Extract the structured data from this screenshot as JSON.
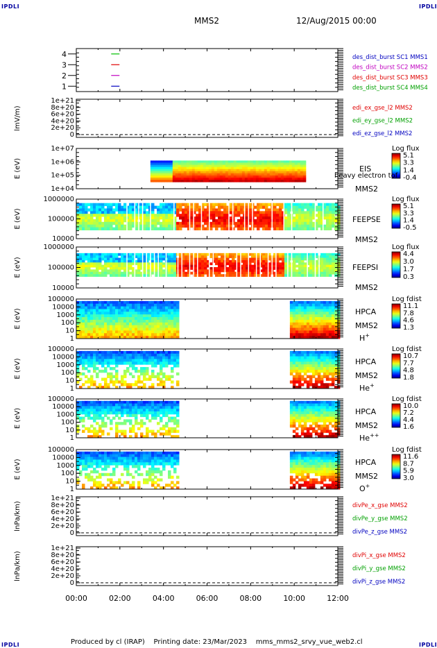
{
  "header": {
    "corner_label": "IPDLI",
    "spacecraft": "MMS2",
    "datetime": "12/Aug/2015 00:00"
  },
  "footer": {
    "produced_by": "Produced by  cl (IRAP)",
    "printing_date": "Printing date: 23/Mar/2023",
    "script_name": "mms_mms2_srvy_vue_web2.cl"
  },
  "chart_data": {
    "type": "heatmap",
    "x_axis": {
      "range": [
        "00:00",
        "12:00"
      ],
      "ticks": [
        "00:00",
        "02:00",
        "04:00",
        "06:00",
        "08:00",
        "10:00",
        "12:00"
      ]
    },
    "panels": [
      {
        "id": "dist",
        "kind": "line",
        "ylim": [
          0.5,
          4.5
        ],
        "yticks": [
          "4",
          "3",
          "2",
          "1"
        ],
        "markers": [
          {
            "y": 4,
            "t": 1.6,
            "color": "#00c000"
          },
          {
            "y": 3,
            "t": 1.6,
            "color": "#e00000"
          },
          {
            "y": 2,
            "t": 1.6,
            "color": "#c000c0"
          },
          {
            "y": 1,
            "t": 1.6,
            "color": "#0000c0"
          }
        ],
        "legend": [
          {
            "text": "des_dist_burst SC1 MMS1",
            "color": "#0000c0"
          },
          {
            "text": "des_dist_burst SC2 MMS2",
            "color": "#c000c0"
          },
          {
            "text": "des_dist_burst SC3 MMS3",
            "color": "#e00000"
          },
          {
            "text": "des_dist_burst SC4 MMS4",
            "color": "#00a000"
          }
        ]
      },
      {
        "id": "edi",
        "kind": "line",
        "ylabel": "lmV/m)",
        "yticks": [
          "1e+21",
          "8e+20",
          "6e+20",
          "4e+20",
          "2e+20",
          "0"
        ],
        "legend": [
          {
            "text": "edi_ex_gse_l2 MMS2",
            "color": "#e00000"
          },
          {
            "text": "edi_ey_gse_l2 MMS2",
            "color": "#00a000"
          },
          {
            "text": "edi_ez_gse_l2 MMS2",
            "color": "#0000c0"
          }
        ]
      },
      {
        "id": "eis",
        "kind": "spectrogram",
        "ylabel": "E (eV)",
        "yticks": [
          "1e+07",
          "1e+06",
          "1e+05",
          "1e+04"
        ],
        "labels": [
          "EIS",
          "heavy electron tof",
          "MMS2"
        ],
        "cbar_title": "Log flux",
        "cbar_ticks": [
          "5.1",
          "3.3",
          "1.4",
          "-0.4"
        ],
        "coverage": [
          [
            3.4,
            10.5
          ]
        ]
      },
      {
        "id": "feepse",
        "kind": "spectrogram",
        "ylabel": "E (eV)",
        "yticks": [
          "1000000",
          "100000",
          "10000"
        ],
        "labels": [
          "FEEPSE",
          "MMS2"
        ],
        "cbar_title": "Log flux",
        "cbar_ticks": [
          "5.1",
          "3.3",
          "1.4",
          "-0.5"
        ],
        "coverage": [
          [
            0,
            12
          ]
        ]
      },
      {
        "id": "feepsi",
        "kind": "spectrogram",
        "ylabel": "E (eV)",
        "yticks": [
          "1000000",
          "100000",
          "10000"
        ],
        "labels": [
          "FEEPSI",
          "MMS2"
        ],
        "cbar_title": "Log flux",
        "cbar_ticks": [
          "4.4",
          "3.0",
          "1.7",
          "0.3"
        ],
        "coverage": [
          [
            0,
            12
          ]
        ]
      },
      {
        "id": "hpca_h",
        "kind": "spectrogram",
        "ylabel": "E (eV)",
        "yticks": [
          "100000",
          "10000",
          "1000",
          "100",
          "10",
          "1"
        ],
        "labels": [
          "HPCA",
          "MMS2"
        ],
        "species": "H",
        "species_sup": "+",
        "cbar_title": "Log fdist",
        "cbar_ticks": [
          "11.1",
          "7.8",
          "4.6",
          "1.3"
        ],
        "coverage": [
          [
            0,
            4.7
          ],
          [
            9.8,
            12
          ]
        ]
      },
      {
        "id": "hpca_he",
        "kind": "spectrogram",
        "ylabel": "E (eV)",
        "yticks": [
          "100000",
          "10000",
          "1000",
          "100",
          "10",
          "1"
        ],
        "labels": [
          "HPCA",
          "MMS2"
        ],
        "species": "He",
        "species_sup": "+",
        "cbar_title": "Log fdist",
        "cbar_ticks": [
          "10.7",
          "7.7",
          "4.8",
          "1.8"
        ],
        "coverage": [
          [
            0,
            4.7
          ],
          [
            9.8,
            12
          ]
        ]
      },
      {
        "id": "hpca_hepp",
        "kind": "spectrogram",
        "ylabel": "E (eV)",
        "yticks": [
          "100000",
          "10000",
          "1000",
          "100",
          "10",
          "1"
        ],
        "labels": [
          "HPCA",
          "MMS2"
        ],
        "species": "He",
        "species_sup": "++",
        "cbar_title": "Log fdist",
        "cbar_ticks": [
          "10.0",
          "7.2",
          "4.4",
          "1.6"
        ],
        "coverage": [
          [
            0,
            4.7
          ],
          [
            9.8,
            12
          ]
        ]
      },
      {
        "id": "hpca_o",
        "kind": "spectrogram",
        "ylabel": "E (eV)",
        "yticks": [
          "100000",
          "10000",
          "1000",
          "100",
          "10",
          "1"
        ],
        "labels": [
          "HPCA",
          "MMS2"
        ],
        "species": "O",
        "species_sup": "+",
        "cbar_title": "Log fdist",
        "cbar_ticks": [
          "11.6",
          "8.7",
          "5.9",
          "3.0"
        ],
        "coverage": [
          [
            0,
            4.7
          ],
          [
            9.8,
            12
          ]
        ]
      },
      {
        "id": "divpe",
        "kind": "line",
        "ylabel": "lnPa/km)",
        "yticks": [
          "1e+21",
          "8e+20",
          "6e+20",
          "4e+20",
          "2e+20",
          "0"
        ],
        "legend": [
          {
            "text": "divPe_x_gse MMS2",
            "color": "#e00000"
          },
          {
            "text": "divPe_y_gse MMS2",
            "color": "#00a000"
          },
          {
            "text": "divPe_z_gse MMS2",
            "color": "#0000c0"
          }
        ]
      },
      {
        "id": "divpi",
        "kind": "line",
        "ylabel": "lnPa/km)",
        "yticks": [
          "1e+21",
          "8e+20",
          "6e+20",
          "4e+20",
          "2e+20",
          "0"
        ],
        "legend": [
          {
            "text": "divPi_x_gse MMS2",
            "color": "#e00000"
          },
          {
            "text": "divPi_y_gse MMS2",
            "color": "#00a000"
          },
          {
            "text": "divPi_z_gse MMS2",
            "color": "#0000c0"
          }
        ]
      }
    ]
  }
}
